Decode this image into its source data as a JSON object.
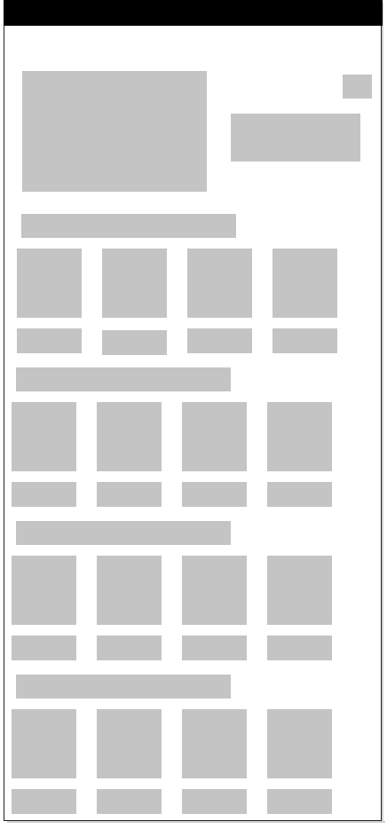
{
  "colors": {
    "placeholder": "#c4c4c4",
    "topbar": "#000000",
    "background": "#ffffff"
  },
  "header": {
    "hero_image": "",
    "corner_button": "",
    "info_box": ""
  },
  "sections": [
    {
      "title": "",
      "items": [
        {
          "label": ""
        },
        {
          "label": ""
        },
        {
          "label": ""
        },
        {
          "label": ""
        }
      ]
    },
    {
      "title": "",
      "items": [
        {
          "label": ""
        },
        {
          "label": ""
        },
        {
          "label": ""
        },
        {
          "label": ""
        }
      ]
    },
    {
      "title": "",
      "items": [
        {
          "label": ""
        },
        {
          "label": ""
        },
        {
          "label": ""
        },
        {
          "label": ""
        }
      ]
    },
    {
      "title": "",
      "items": [
        {
          "label": ""
        },
        {
          "label": ""
        },
        {
          "label": ""
        },
        {
          "label": ""
        }
      ]
    }
  ]
}
